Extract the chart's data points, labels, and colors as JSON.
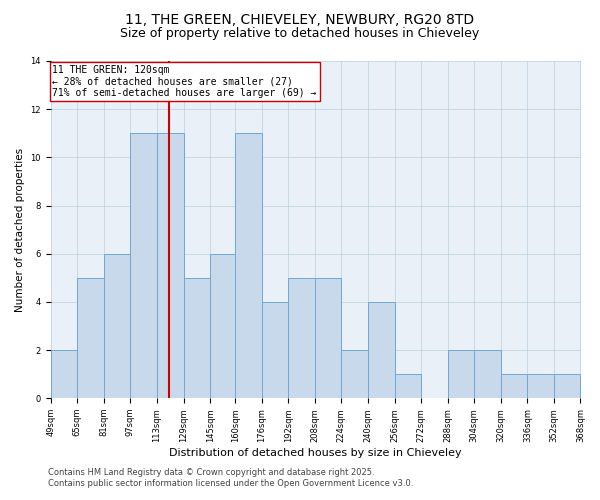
{
  "title1": "11, THE GREEN, CHIEVELEY, NEWBURY, RG20 8TD",
  "title2": "Size of property relative to detached houses in Chieveley",
  "xlabel": "Distribution of detached houses by size in Chieveley",
  "ylabel": "Number of detached properties",
  "bin_edges": [
    49,
    65,
    81,
    97,
    113,
    129,
    145,
    160,
    176,
    192,
    208,
    224,
    240,
    256,
    272,
    288,
    304,
    320,
    336,
    352,
    368
  ],
  "counts": [
    2,
    5,
    6,
    11,
    11,
    5,
    6,
    11,
    4,
    5,
    5,
    2,
    4,
    1,
    0,
    2,
    2,
    1,
    1,
    1
  ],
  "bar_color": "#c9d9ec",
  "bar_edge_color": "#6fa8d6",
  "property_size": 120,
  "red_line_color": "#cc0000",
  "annotation_text_line1": "11 THE GREEN: 120sqm",
  "annotation_text_line2": "← 28% of detached houses are smaller (27)",
  "annotation_text_line3": "71% of semi-detached houses are larger (69) →",
  "annotation_box_color": "#ffffff",
  "annotation_box_edge_color": "#cc0000",
  "ylim": [
    0,
    14
  ],
  "yticks": [
    0,
    2,
    4,
    6,
    8,
    10,
    12,
    14
  ],
  "bg_color": "#eaf0f8",
  "footer1": "Contains HM Land Registry data © Crown copyright and database right 2025.",
  "footer2": "Contains public sector information licensed under the Open Government Licence v3.0.",
  "title1_fontsize": 10,
  "title2_fontsize": 9,
  "annotation_fontsize": 7,
  "footer_fontsize": 6,
  "tick_fontsize": 6,
  "ylabel_fontsize": 7.5,
  "xlabel_fontsize": 8
}
